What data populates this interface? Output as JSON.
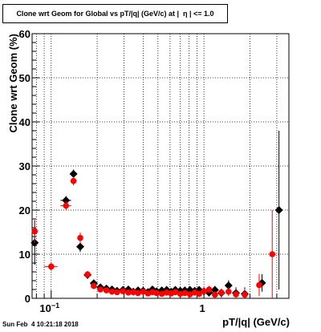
{
  "title": "Clone wrt Geom for Global vs pT/|q| (GeV/c) at |  η | <= 1.0",
  "timestamp": "Sun Feb  4 10:21:18 2018",
  "chart_data": {
    "type": "scatter",
    "xlabel": "pT/|q| (GeV/c)",
    "ylabel": "Clone wrt Geom (%)",
    "xscale": "log",
    "xlim": [
      0.075,
      3.6
    ],
    "ylim": [
      0,
      60
    ],
    "grid": true,
    "x_tick_labels": [
      {
        "value": 0.1,
        "base": "10",
        "exp": "−1"
      },
      {
        "value": 1,
        "base": "1",
        "exp": ""
      }
    ],
    "y_tick_labels": [
      "0",
      "10",
      "20",
      "30",
      "40",
      "50",
      "60"
    ],
    "series": [
      {
        "color": "#000000",
        "marker": "diamond",
        "points": [
          {
            "x": 0.078,
            "y": 12.6,
            "xerr": [
              0.003,
              0.002
            ],
            "yerr": 5.0
          },
          {
            "x": 0.125,
            "y": 22.2,
            "xerr": [
              0.01,
              0.01
            ],
            "yerr": 1.0
          },
          {
            "x": 0.14,
            "y": 28.2,
            "xerr": [
              0.005,
              0.005
            ],
            "yerr": 1.0
          },
          {
            "x": 0.155,
            "y": 11.7,
            "yerr": 1.2
          },
          {
            "x": 0.173,
            "y": 5.3,
            "yerr": 0.8
          },
          {
            "x": 0.19,
            "y": 3.4,
            "yerr": 0.7
          },
          {
            "x": 0.21,
            "y": 2.5,
            "yerr": 0.6
          },
          {
            "x": 0.23,
            "y": 2.2,
            "yerr": 0.6
          },
          {
            "x": 0.25,
            "y": 2.0,
            "yerr": 0.6
          },
          {
            "x": 0.27,
            "y": 1.7,
            "yerr": 0.5
          },
          {
            "x": 0.295,
            "y": 1.9,
            "yerr": 0.5
          },
          {
            "x": 0.32,
            "y": 2.0,
            "yerr": 0.5
          },
          {
            "x": 0.345,
            "y": 1.5,
            "yerr": 0.5
          },
          {
            "x": 0.37,
            "y": 1.8,
            "yerr": 0.5
          },
          {
            "x": 0.4,
            "y": 1.7,
            "yerr": 0.5
          },
          {
            "x": 0.43,
            "y": 1.4,
            "yerr": 0.5
          },
          {
            "x": 0.46,
            "y": 2.0,
            "yerr": 0.6
          },
          {
            "x": 0.49,
            "y": 1.6,
            "yerr": 0.6
          },
          {
            "x": 0.53,
            "y": 1.8,
            "yerr": 0.6
          },
          {
            "x": 0.57,
            "y": 1.9,
            "yerr": 0.6
          },
          {
            "x": 0.61,
            "y": 1.5,
            "yerr": 0.6
          },
          {
            "x": 0.65,
            "y": 1.9,
            "yerr": 0.6
          },
          {
            "x": 0.7,
            "y": 1.7,
            "yerr": 0.7
          },
          {
            "x": 0.75,
            "y": 1.8,
            "yerr": 0.7
          },
          {
            "x": 0.81,
            "y": 1.9,
            "yerr": 0.7
          },
          {
            "x": 0.87,
            "y": 1.7,
            "yerr": 0.8
          },
          {
            "x": 0.93,
            "y": 1.9,
            "yerr": 0.8
          },
          {
            "x": 1.0,
            "y": 1.6,
            "yerr": 0.8
          },
          {
            "x": 1.08,
            "y": 1.3,
            "yerr": 0.9
          },
          {
            "x": 1.18,
            "y": 1.9,
            "yerr": 0.9
          },
          {
            "x": 1.3,
            "y": 1.2,
            "yerr": 1.0
          },
          {
            "x": 1.45,
            "y": 2.9,
            "yerr": 1.2
          },
          {
            "x": 1.62,
            "y": 1.2,
            "yerr": 1.3
          },
          {
            "x": 1.85,
            "y": 1.0,
            "yerr": 1.5
          },
          {
            "x": 2.4,
            "y": 3.5,
            "yerr": 2.0
          },
          {
            "x": 3.1,
            "y": 20.0,
            "yerr": [
              18.0,
              18.0
            ]
          }
        ]
      },
      {
        "color": "#ff0000",
        "marker": "circle",
        "points": [
          {
            "x": 0.078,
            "y": 15.2,
            "xerr": [
              0.003,
              0.002
            ],
            "yerr": 2.6
          },
          {
            "x": 0.1,
            "y": 7.2,
            "xerr": [
              0.01,
              0.01
            ],
            "yerr": 1.0
          },
          {
            "x": 0.125,
            "y": 21.0,
            "xerr": [
              0.01,
              0.01
            ],
            "yerr": 1.0
          },
          {
            "x": 0.14,
            "y": 26.6,
            "yerr": 1.0
          },
          {
            "x": 0.155,
            "y": 13.7,
            "yerr": 1.2
          },
          {
            "x": 0.173,
            "y": 5.4,
            "yerr": 0.8
          },
          {
            "x": 0.19,
            "y": 2.8,
            "yerr": 0.7
          },
          {
            "x": 0.21,
            "y": 2.0,
            "yerr": 0.6
          },
          {
            "x": 0.23,
            "y": 1.8,
            "yerr": 0.6
          },
          {
            "x": 0.25,
            "y": 1.5,
            "yerr": 0.5
          },
          {
            "x": 0.27,
            "y": 1.4,
            "yerr": 0.5
          },
          {
            "x": 0.295,
            "y": 1.6,
            "yerr": 0.5
          },
          {
            "x": 0.32,
            "y": 1.3,
            "yerr": 0.5
          },
          {
            "x": 0.345,
            "y": 1.4,
            "yerr": 0.5
          },
          {
            "x": 0.37,
            "y": 1.2,
            "yerr": 0.5
          },
          {
            "x": 0.4,
            "y": 1.5,
            "yerr": 0.5
          },
          {
            "x": 0.43,
            "y": 1.1,
            "yerr": 0.5
          },
          {
            "x": 0.46,
            "y": 1.4,
            "yerr": 0.5
          },
          {
            "x": 0.49,
            "y": 1.2,
            "yerr": 0.5
          },
          {
            "x": 0.53,
            "y": 1.0,
            "yerr": 0.5
          },
          {
            "x": 0.57,
            "y": 1.3,
            "yerr": 0.5
          },
          {
            "x": 0.61,
            "y": 1.1,
            "yerr": 0.5
          },
          {
            "x": 0.65,
            "y": 1.4,
            "yerr": 0.5
          },
          {
            "x": 0.7,
            "y": 1.0,
            "yerr": 0.6
          },
          {
            "x": 0.75,
            "y": 1.2,
            "yerr": 0.6
          },
          {
            "x": 0.81,
            "y": 0.9,
            "yerr": 0.6
          },
          {
            "x": 0.87,
            "y": 1.3,
            "yerr": 0.6
          },
          {
            "x": 0.93,
            "y": 1.0,
            "yerr": 0.7
          },
          {
            "x": 1.0,
            "y": 1.6,
            "yerr": 0.7
          },
          {
            "x": 1.08,
            "y": 2.0,
            "yerr": 0.8
          },
          {
            "x": 1.18,
            "y": 0.8,
            "yerr": 0.8
          },
          {
            "x": 1.3,
            "y": 1.3,
            "yerr": 0.9
          },
          {
            "x": 1.45,
            "y": 1.5,
            "yerr": 1.0
          },
          {
            "x": 1.62,
            "y": 0.9,
            "yerr": 1.1
          },
          {
            "x": 1.85,
            "y": 0.8,
            "yerr": 1.3
          },
          {
            "x": 2.3,
            "y": 3.0,
            "yerr": 2.5
          },
          {
            "x": 2.8,
            "y": 10.0,
            "yerr": [
              10.0,
              10.0
            ]
          }
        ]
      }
    ]
  }
}
